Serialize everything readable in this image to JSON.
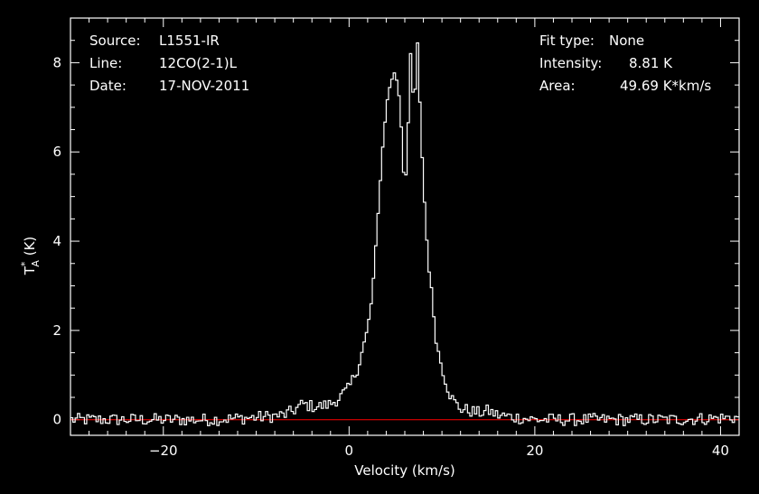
{
  "header_left": {
    "source_label": "Source:",
    "source_value": "L1551-IR",
    "line_label": "Line:",
    "line_value": "12CO(2-1)L",
    "date_label": "Date:",
    "date_value": "17-NOV-2011"
  },
  "header_right": {
    "fit_label": "Fit type:",
    "fit_value": "None",
    "intensity_label": "Intensity:",
    "intensity_value": "8.81 K",
    "area_label": "Area:",
    "area_value": "49.69 K*km/s"
  },
  "colors": {
    "background": "#000000",
    "foreground": "#ffffff",
    "baseline": "#ff0000"
  },
  "chart_data": {
    "type": "line",
    "title": "",
    "xlabel": "Velocity (km/s)",
    "ylabel_main": "T",
    "ylabel_sup": "*",
    "ylabel_sub": "A",
    "ylabel_unit": " (K)",
    "xlim": [
      -30,
      42
    ],
    "ylim": [
      -0.35,
      9.0
    ],
    "xticks": [
      -20,
      0,
      20,
      40
    ],
    "xtick_labels": [
      "−20",
      "0",
      "20",
      "40"
    ],
    "yticks": [
      0,
      2,
      4,
      6,
      8
    ],
    "ytick_labels": [
      "0",
      "2",
      "4",
      "6",
      "8"
    ],
    "step": 0.25,
    "grid": false,
    "legend": "none",
    "baseline_y": 0,
    "series": [
      {
        "style": "histogram-step",
        "x": [
          -30,
          -25,
          -20,
          -15,
          -10,
          -7,
          -6,
          -5,
          -4,
          -3,
          -2,
          -1,
          0,
          1,
          2,
          2.5,
          3,
          3.5,
          4,
          4.5,
          5,
          5.5,
          6,
          6.3,
          6.7,
          7,
          7.3,
          7.6,
          8,
          8.5,
          9,
          9.5,
          10,
          10.5,
          11,
          11.5,
          12,
          13,
          14,
          15,
          16,
          18,
          20,
          25,
          30,
          35,
          42
        ],
        "y": [
          0.0,
          0.0,
          0.0,
          0.0,
          0.05,
          0.1,
          0.2,
          0.35,
          0.3,
          0.3,
          0.35,
          0.5,
          0.7,
          1.2,
          2.0,
          2.8,
          4.2,
          5.8,
          7.0,
          7.6,
          7.8,
          7.1,
          5.05,
          6.2,
          8.6,
          6.4,
          8.81,
          7.2,
          5.3,
          3.6,
          2.6,
          1.6,
          1.2,
          0.8,
          0.5,
          0.35,
          0.25,
          0.2,
          0.15,
          0.2,
          0.1,
          0.05,
          0.0,
          0.0,
          0.0,
          0.0,
          0.05
        ]
      }
    ]
  }
}
